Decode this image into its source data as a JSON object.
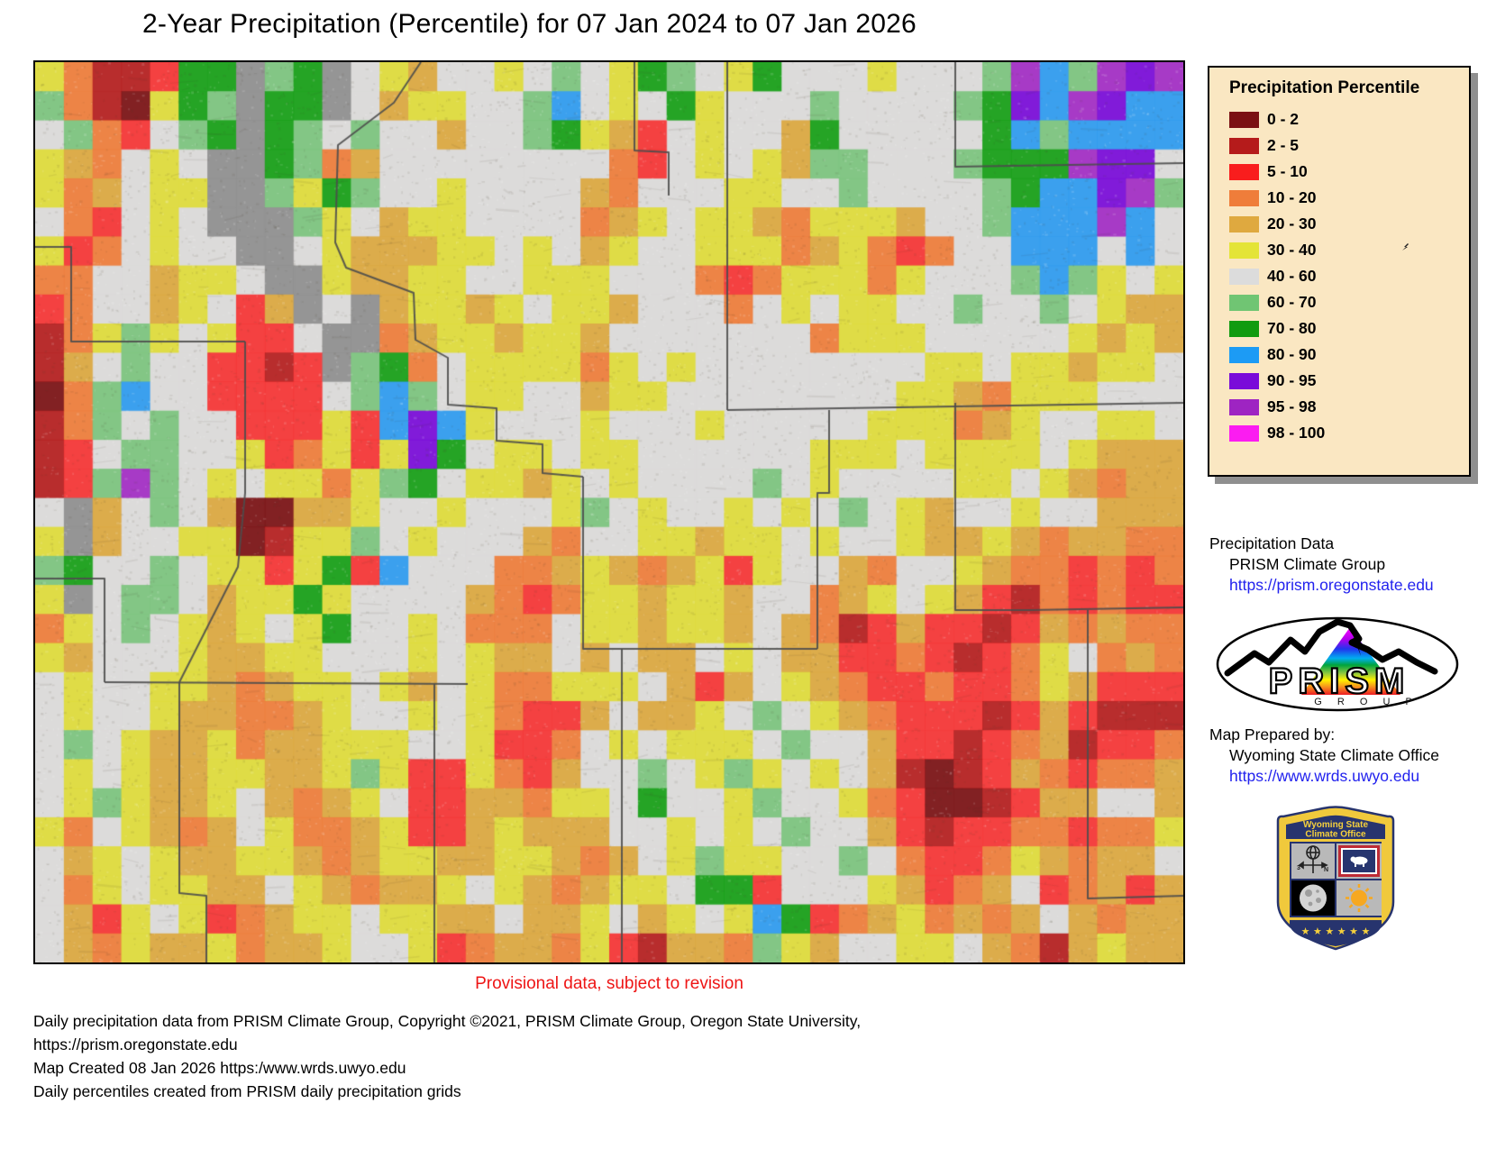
{
  "title": "2-Year Precipitation (Percentile) for 07 Jan 2024 to 07 Jan 2026",
  "legend": {
    "title": "Precipitation Percentile",
    "background": "#FAE7C2",
    "entries": [
      {
        "label": "0 - 2",
        "color": "#7B1113"
      },
      {
        "label": "2 - 5",
        "color": "#B51B1B"
      },
      {
        "label": "5 - 10",
        "color": "#F91D1D"
      },
      {
        "label": "10 - 20",
        "color": "#EF7D3A"
      },
      {
        "label": "20 - 30",
        "color": "#DFA93F"
      },
      {
        "label": "30 - 40",
        "color": "#E4E437"
      },
      {
        "label": "40 - 60",
        "color": "#DCDCDC"
      },
      {
        "label": "60 - 70",
        "color": "#70C573"
      },
      {
        "label": "70 - 80",
        "color": "#109B10"
      },
      {
        "label": "80 - 90",
        "color": "#1C9BF5"
      },
      {
        "label": "90 - 95",
        "color": "#7A0BD9"
      },
      {
        "label": "95 - 98",
        "color": "#9E24C2"
      },
      {
        "label": "98 - 100",
        "color": "#FB1CF1"
      }
    ]
  },
  "credits": {
    "precip_label": "Precipitation Data",
    "precip_org": "PRISM Climate Group",
    "precip_url": "https://prism.oregonstate.edu",
    "prepared_label": "Map Prepared by:",
    "prepared_org": "Wyoming State Climate Office",
    "prepared_url": "https://www.wrds.uwyo.edu"
  },
  "prism_logo": {
    "text": "PRISM",
    "subtext": "G R O U P"
  },
  "shield": {
    "line1": "Wyoming State",
    "line2": "Climate Office",
    "stars": "★ ★ ★ ★ ★ ★"
  },
  "provisional": "Provisional data, subject to revision",
  "footer": {
    "line1": "Daily precipitation data from PRISM Climate Group, Copyright ©2021, PRISM Climate Group, Oregon State University,",
    "line2": "https://prism.oregonstate.edu",
    "line3": "Map Created 08 Jan 2026 https:/www.wrds.uwyo.edu",
    "line4": "Daily percentiles created from PRISM daily precipitation grids"
  },
  "map": {
    "grid_cols": 40,
    "grid_rows": 31,
    "palette": {
      "a": "#7B1113",
      "b": "#B51E1E",
      "r": "#F63434",
      "o": "#EF7D3A",
      "t": "#DCA83F",
      "y": "#DFDC3A",
      "w": "#DDDCDA",
      "g": "#7CC47E",
      "G": "#16A016",
      "B": "#2E9BF0",
      "p": "#7A0BD9",
      "P": "#A32CC4",
      "m": "#FB1CF1",
      "d": "#8F8F8F"
    },
    "rows": [
      "yobbrGGdgGdwytwwywgwyGgwyGwwwywwwgPBgPpP",
      "gobayGgdGGdwtyywwgBwywGywwwgwwwwgGpBPpBB",
      "wgorwgGdGgwgwwtwwgGytrwywwtGwwwwwGBgBBBB",
      "ytowywddGgotwwwwwwwworwywytggwwwgGGGPppw",
      "yotwyyddgyGgwwywwwwtowwwyywwgwwwwgGBBpPg",
      "worwywdddgywtyywwwwotywyytoyyytwwgBBBPBw",
      "yrowywwddwytttyywywtywwyyyotyorowwBBBwBw",
      "oowwtyywddyttyywwyyywwworoyyyoywwwgBgywy",
      "rowwtywrtdwdtyytywyytwwwowywyywwgwwgwytt",
      "boygywyrrwddotyytyytwwwwwwwoyyywwwwwytyt",
      "btwgwwrrbrdgGowyyyyoywywwwwwwwwyywyytyyw",
      "aogBwwrrrrwgBgwyywwtyywwwwwwwwyytoyyywww",
      "bogwgwwrrryrBpBywwwywwwywwwwwyyyotywwyyw",
      "brwggwwyroyrypGwyywyywwwwwwyyywyyyywyttt",
      "brgPgwywyyoygGwyytywywwwwgwywwwwyywytott",
      "wdtwgwtaattywwywwwygwywwywywgwytwwywwttt",
      "ydtwwyyabyygwywwwtowwyytyywywwyttytottoo",
      "gGwwgwyyryGrBwwwootytotyrywwtowwytoororo",
      "ydwggwtyyGywwwwtoroyytyytwwotywytrbororr",
      "oywgwytywyGwwywooowyytyytwtobrtrrbrtotoo",
      "ytwwwyttyywwwywyttwtwttwywttrrorbroywoto",
      "wywwyytotyywytwyooyyywtrtwytorrorroytrrr",
      "wywwyttootywwywyorrtwttywgwytorrrbrtrbbb",
      "wgwyttyottyyywwyrrowywyyywgwwtrrbrotbrro",
      "wywyttyyttygyrryortwwgwygywywtbabrtoroot",
      "wygyttywtotywrrttoyywGwwygwwyoraabrttwwt",
      "yowytotwyootyrrtytttwwywywgwwtrbrroorooy",
      "wtywyttyytotyyttyytotwygyywwgworroytottw",
      "woywyyttwytottywytotyywGGrwwwytrotwrotrt",
      "wtrywyrotyywyyttwttywtywyBGrotyototwtott",
      "wtoyttyottywwyrottoyrbttogytwwyywtobtytt"
    ],
    "line_color": "#4c4c4c",
    "county_lines": [
      [
        [
          428,
          0
        ],
        [
          398,
          45
        ],
        [
          336,
          92
        ],
        [
          333,
          200
        ],
        [
          345,
          228
        ],
        [
          420,
          256
        ],
        [
          422,
          308
        ],
        [
          458,
          328
        ],
        [
          458,
          380
        ],
        [
          512,
          384
        ],
        [
          512,
          420
        ],
        [
          563,
          424
        ],
        [
          563,
          456
        ],
        [
          608,
          460
        ]
      ],
      [
        [
          665,
          0
        ],
        [
          665,
          98
        ],
        [
          703,
          100
        ],
        [
          703,
          148
        ]
      ],
      [
        [
          768,
          0
        ],
        [
          768,
          386
        ]
      ],
      [
        [
          768,
          386
        ],
        [
          1274,
          378
        ]
      ],
      [
        [
          1021,
          0
        ],
        [
          1021,
          116
        ],
        [
          1274,
          112
        ]
      ],
      [
        [
          881,
          386
        ],
        [
          881,
          478
        ],
        [
          868,
          478
        ],
        [
          868,
          651
        ]
      ],
      [
        [
          608,
          460
        ],
        [
          608,
          651
        ],
        [
          868,
          651
        ]
      ],
      [
        [
          77,
          688
        ],
        [
          480,
          690
        ]
      ],
      [
        [
          443,
          690
        ],
        [
          443,
          999
        ]
      ],
      [
        [
          160,
          688
        ],
        [
          160,
          922
        ],
        [
          190,
          925
        ],
        [
          190,
          999
        ]
      ],
      [
        [
          233,
          310
        ],
        [
          233,
          478
        ],
        [
          225,
          560
        ],
        [
          160,
          688
        ]
      ],
      [
        [
          651,
          651
        ],
        [
          651,
          999
        ]
      ],
      [
        [
          1103,
          608
        ],
        [
          1274,
          605
        ]
      ],
      [
        [
          1168,
          608
        ],
        [
          1168,
          928
        ],
        [
          1274,
          925
        ]
      ],
      [
        [
          0,
          573
        ],
        [
          77,
          573
        ],
        [
          77,
          688
        ]
      ],
      [
        [
          0,
          205
        ],
        [
          40,
          205
        ],
        [
          40,
          310
        ],
        [
          233,
          310
        ]
      ],
      [
        [
          1021,
          378
        ],
        [
          1021,
          608
        ],
        [
          1103,
          608
        ]
      ]
    ]
  }
}
